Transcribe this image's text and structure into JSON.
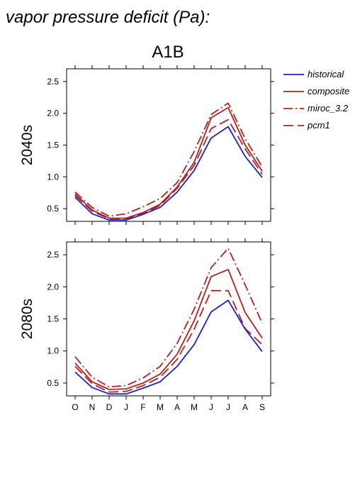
{
  "title": "vapor pressure deficit (Pa):",
  "scenario": "A1B",
  "colors": {
    "historical": "#2222bb",
    "future": "#b22222"
  },
  "legend": [
    {
      "label": "historical",
      "series": "historical"
    },
    {
      "label": "composite",
      "series": "composite"
    },
    {
      "label": "miroc_3.2",
      "series": "miroc_3.2"
    },
    {
      "label": "pcm1",
      "series": "pcm1"
    }
  ],
  "chart_data": [
    {
      "type": "line",
      "panel_label": "2040s",
      "categories": [
        "O",
        "N",
        "D",
        "J",
        "F",
        "M",
        "A",
        "M",
        "J",
        "J",
        "A",
        "S"
      ],
      "ylim": [
        0.3,
        2.7
      ],
      "yticks": [
        "0.5",
        "1.0",
        "1.5",
        "2.0",
        "2.5"
      ],
      "series": [
        {
          "name": "historical",
          "values": [
            0.68,
            0.42,
            0.32,
            0.32,
            0.41,
            0.52,
            0.76,
            1.1,
            1.61,
            1.79,
            1.32,
            0.99
          ]
        },
        {
          "name": "composite",
          "values": [
            0.73,
            0.48,
            0.35,
            0.35,
            0.44,
            0.57,
            0.84,
            1.23,
            1.93,
            2.09,
            1.5,
            1.09
          ]
        },
        {
          "name": "miroc_3.2",
          "values": [
            0.76,
            0.52,
            0.38,
            0.42,
            0.53,
            0.66,
            0.91,
            1.4,
            1.98,
            2.16,
            1.6,
            1.16
          ]
        },
        {
          "name": "pcm1",
          "values": [
            0.71,
            0.46,
            0.34,
            0.34,
            0.42,
            0.55,
            0.82,
            1.18,
            1.76,
            1.9,
            1.44,
            1.04
          ]
        }
      ]
    },
    {
      "type": "line",
      "panel_label": "2080s",
      "categories": [
        "O",
        "N",
        "D",
        "J",
        "F",
        "M",
        "A",
        "M",
        "J",
        "J",
        "A",
        "S"
      ],
      "ylim": [
        0.3,
        2.7
      ],
      "yticks": [
        "0.5",
        "1.0",
        "1.5",
        "2.0",
        "2.5"
      ],
      "series": [
        {
          "name": "historical",
          "values": [
            0.67,
            0.43,
            0.33,
            0.33,
            0.42,
            0.52,
            0.76,
            1.1,
            1.61,
            1.79,
            1.34,
            0.99
          ]
        },
        {
          "name": "composite",
          "values": [
            0.81,
            0.52,
            0.4,
            0.41,
            0.5,
            0.64,
            0.95,
            1.47,
            2.16,
            2.27,
            1.6,
            1.2
          ]
        },
        {
          "name": "miroc_3.2",
          "values": [
            0.91,
            0.59,
            0.44,
            0.46,
            0.58,
            0.76,
            1.12,
            1.65,
            2.3,
            2.6,
            2.03,
            1.43
          ]
        },
        {
          "name": "pcm1",
          "values": [
            0.76,
            0.49,
            0.36,
            0.37,
            0.46,
            0.59,
            0.87,
            1.34,
            1.94,
            1.94,
            1.35,
            1.1
          ]
        }
      ]
    }
  ]
}
